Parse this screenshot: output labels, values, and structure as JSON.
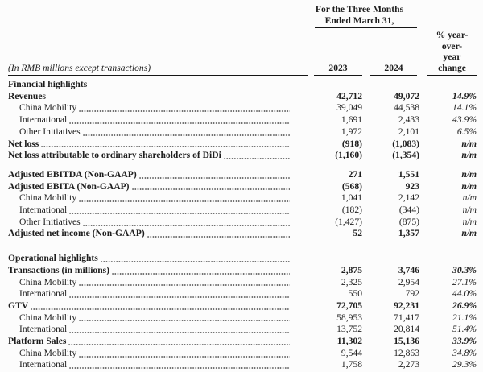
{
  "colors": {
    "background": "#fcfcfc",
    "text": "#1e1e1e",
    "rule": "#161616"
  },
  "header": {
    "period_line1": "For the Three Months",
    "period_line2": "Ended March 31,",
    "yoy_line1": "% year-",
    "yoy_line2": "over-",
    "yoy_line3": "year",
    "yoy_line4": "change",
    "unit_note": "(In RMB millions except transactions)",
    "col_2023": "2023",
    "col_2024": "2024"
  },
  "rows": [
    {
      "label": "Financial highlights",
      "bold": true,
      "indent": false,
      "leader": false,
      "v2023": "",
      "v2024": "",
      "yoy": "",
      "gap_before": 0
    },
    {
      "label": "Revenues",
      "bold": true,
      "indent": false,
      "leader": false,
      "v2023": "42,712",
      "v2024": "49,072",
      "yoy": "14.9%",
      "gap_before": 0
    },
    {
      "label": "China Mobility",
      "bold": false,
      "indent": true,
      "leader": true,
      "v2023": "39,049",
      "v2024": "44,538",
      "yoy": "14.1%",
      "gap_before": 0
    },
    {
      "label": "International",
      "bold": false,
      "indent": true,
      "leader": true,
      "v2023": "1,691",
      "v2024": "2,433",
      "yoy": "43.9%",
      "gap_before": 0
    },
    {
      "label": "Other Initiatives",
      "bold": false,
      "indent": true,
      "leader": true,
      "v2023": "1,972",
      "v2024": "2,101",
      "yoy": "6.5%",
      "gap_before": 0
    },
    {
      "label": "Net loss",
      "bold": true,
      "indent": false,
      "leader": true,
      "v2023": "(918)",
      "v2024": "(1,083)",
      "yoy": "n/m",
      "gap_before": 0
    },
    {
      "label": "Net loss attributable to ordinary shareholders of DiDi",
      "bold": true,
      "indent": false,
      "leader": true,
      "v2023": "(1,160)",
      "v2024": "(1,354)",
      "yoy": "n/m",
      "gap_before": 0
    },
    {
      "label": "Adjusted EBITDA (Non-GAAP)",
      "bold": true,
      "indent": false,
      "leader": true,
      "v2023": "271",
      "v2024": "1,551",
      "yoy": "n/m",
      "gap_before": 9
    },
    {
      "label": "Adjusted EBITA (Non-GAAP)",
      "bold": true,
      "indent": false,
      "leader": true,
      "v2023": "(568)",
      "v2024": "923",
      "yoy": "n/m",
      "gap_before": 0
    },
    {
      "label": "China Mobility",
      "bold": false,
      "indent": true,
      "leader": true,
      "v2023": "1,041",
      "v2024": "2,142",
      "yoy": "n/m",
      "gap_before": 0
    },
    {
      "label": "International",
      "bold": false,
      "indent": true,
      "leader": true,
      "v2023": "(182)",
      "v2024": "(344)",
      "yoy": "n/m",
      "gap_before": 0
    },
    {
      "label": "Other Initiatives",
      "bold": false,
      "indent": true,
      "leader": true,
      "v2023": "(1,427)",
      "v2024": "(875)",
      "yoy": "n/m",
      "gap_before": 0
    },
    {
      "label": "Adjusted net income (Non-GAAP)",
      "bold": true,
      "indent": false,
      "leader": true,
      "v2023": "52",
      "v2024": "1,357",
      "yoy": "n/m",
      "gap_before": 0
    },
    {
      "label": "Operational highlights",
      "bold": true,
      "indent": false,
      "leader": true,
      "v2023": "",
      "v2024": "",
      "yoy": "",
      "gap_before": 16
    },
    {
      "label": "Transactions (in millions)",
      "bold": true,
      "indent": false,
      "leader": true,
      "v2023": "2,875",
      "v2024": "3,746",
      "yoy": "30.3%",
      "gap_before": 0
    },
    {
      "label": "China Mobility",
      "bold": false,
      "indent": true,
      "leader": true,
      "v2023": "2,325",
      "v2024": "2,954",
      "yoy": "27.1%",
      "gap_before": 0
    },
    {
      "label": "International",
      "bold": false,
      "indent": true,
      "leader": true,
      "v2023": "550",
      "v2024": "792",
      "yoy": "44.0%",
      "gap_before": 0
    },
    {
      "label": "GTV",
      "bold": true,
      "indent": false,
      "leader": true,
      "v2023": "72,705",
      "v2024": "92,231",
      "yoy": "26.9%",
      "gap_before": 0
    },
    {
      "label": "China Mobility",
      "bold": false,
      "indent": true,
      "leader": true,
      "v2023": "58,953",
      "v2024": "71,417",
      "yoy": "21.1%",
      "gap_before": 0
    },
    {
      "label": "International",
      "bold": false,
      "indent": true,
      "leader": true,
      "v2023": "13,752",
      "v2024": "20,814",
      "yoy": "51.4%",
      "gap_before": 0
    },
    {
      "label": "Platform Sales",
      "bold": true,
      "indent": false,
      "leader": true,
      "v2023": "11,302",
      "v2024": "15,136",
      "yoy": "33.9%",
      "gap_before": 0
    },
    {
      "label": "China Mobility",
      "bold": false,
      "indent": true,
      "leader": true,
      "v2023": "9,544",
      "v2024": "12,863",
      "yoy": "34.8%",
      "gap_before": 0
    },
    {
      "label": "International",
      "bold": false,
      "indent": true,
      "leader": true,
      "v2023": "1,758",
      "v2024": "2,273",
      "yoy": "29.3%",
      "gap_before": 0
    }
  ]
}
